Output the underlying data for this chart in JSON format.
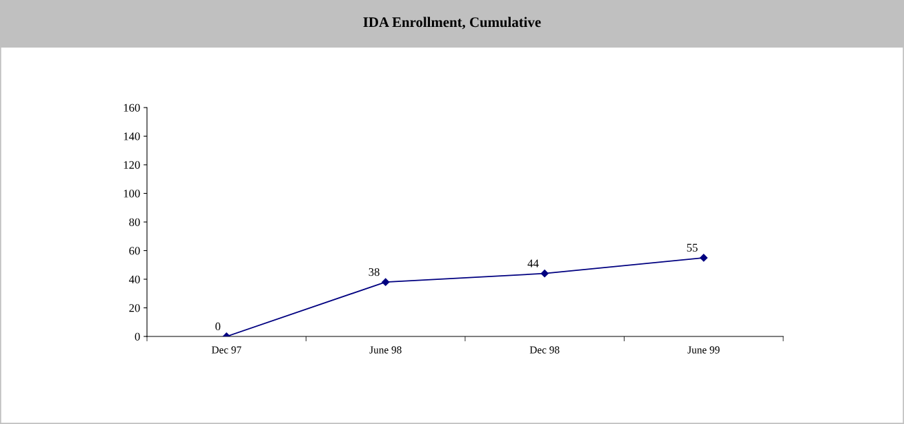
{
  "chart_data": {
    "type": "line",
    "title": "IDA Enrollment, Cumulative",
    "categories": [
      "Dec 97",
      "June 98",
      "Dec 98",
      "June 99"
    ],
    "series": [
      {
        "color": "#000080",
        "values": [
          0,
          38,
          44,
          55
        ]
      }
    ],
    "ylim": [
      0,
      160
    ],
    "yticks": [
      0,
      20,
      40,
      60,
      80,
      100,
      120,
      140,
      160
    ],
    "marker": "diamond",
    "line_style": "solid",
    "data_labels": true,
    "grid": false
  }
}
